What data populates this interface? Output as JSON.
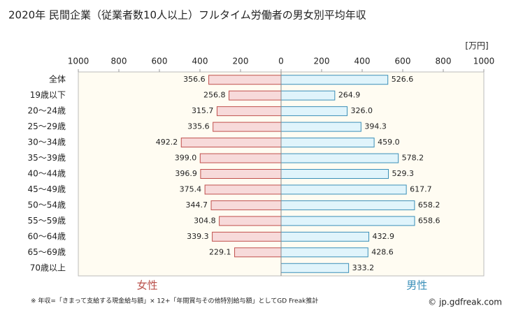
{
  "chart_data": {
    "type": "bar",
    "title": "2020年 民間企業（従業者数10人以上）フルタイム労働者の男女別平均年収",
    "unit": "[万円]",
    "categories": [
      "全体",
      "19歳以下",
      "20〜24歳",
      "25〜29歳",
      "30〜34歳",
      "35〜39歳",
      "40〜44歳",
      "45〜49歳",
      "50〜54歳",
      "55〜59歳",
      "60〜64歳",
      "65〜69歳",
      "70歳以上"
    ],
    "series": [
      {
        "name": "女性",
        "side": "left",
        "color": "#f7dada",
        "stroke": "#c0504d",
        "text_color": "#b9504a",
        "values": [
          356.6,
          256.8,
          315.7,
          335.6,
          492.2,
          399.0,
          396.9,
          375.4,
          344.7,
          304.8,
          339.3,
          229.1,
          null
        ],
        "value_labels": [
          "356.6",
          "256.8",
          "315.7",
          "335.6",
          "492.2",
          "399.0",
          "396.9",
          "375.4",
          "344.7",
          "304.8",
          "339.3",
          "229.1",
          null
        ]
      },
      {
        "name": "男性",
        "side": "right",
        "color": "#e0f4fb",
        "stroke": "#3a8fb8",
        "text_color": "#3a8fb8",
        "values": [
          526.6,
          264.9,
          326.0,
          394.3,
          459.0,
          578.2,
          529.3,
          617.7,
          658.2,
          658.6,
          432.9,
          428.6,
          333.2
        ],
        "value_labels": [
          "526.6",
          "264.9",
          "326.0",
          "394.3",
          "459.0",
          "578.2",
          "529.3",
          "617.7",
          "658.2",
          "658.6",
          "432.9",
          "428.6",
          "333.2"
        ]
      }
    ],
    "xlim": [
      0,
      1000
    ],
    "xticks": [
      0,
      200,
      400,
      600,
      800,
      1000
    ],
    "grid": false,
    "footnote": "※ 年収=「きまって支給する現金給与額」× 12+「年間賞与その他特別給与額」としてGD Freak推計",
    "watermark": "© jp.gdfreak.com"
  }
}
